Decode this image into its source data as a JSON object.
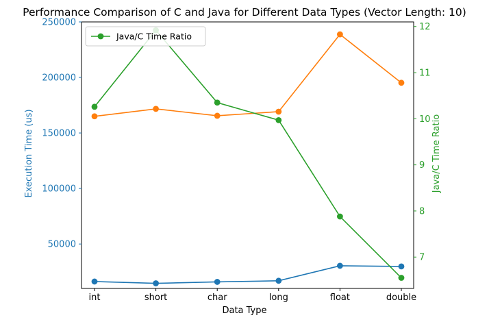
{
  "chart_data": {
    "type": "line",
    "title": "Performance Comparison of C and Java for Different Data Types (Vector Length: 10)",
    "xlabel": "Data Type",
    "ylabel_left": "Execution Time (us)",
    "ylabel_right": "Java/C Time Ratio",
    "categories": [
      "int",
      "short",
      "char",
      "long",
      "float",
      "double"
    ],
    "ylim_left": [
      10000,
      250000
    ],
    "yticks_left": [
      50000,
      100000,
      150000,
      200000,
      250000
    ],
    "ylim_right": [
      6.32,
      12.1
    ],
    "yticks_right": [
      7,
      8,
      9,
      10,
      11,
      12
    ],
    "series": [
      {
        "axis": "left",
        "color": "#1f77b4",
        "values": [
          16200,
          14600,
          15900,
          16900,
          30400,
          29800
        ]
      },
      {
        "axis": "left",
        "color": "#ff7f0e",
        "values": [
          165000,
          171700,
          165500,
          169200,
          238800,
          195200
        ]
      },
      {
        "axis": "right",
        "color": "#2ca02c",
        "name": "Java/C Time Ratio",
        "values": [
          10.26,
          11.92,
          10.35,
          9.97,
          7.88,
          6.55
        ]
      }
    ],
    "legend": {
      "position": "upper-left",
      "entries": [
        "Java/C Time Ratio"
      ]
    },
    "grid": false
  }
}
